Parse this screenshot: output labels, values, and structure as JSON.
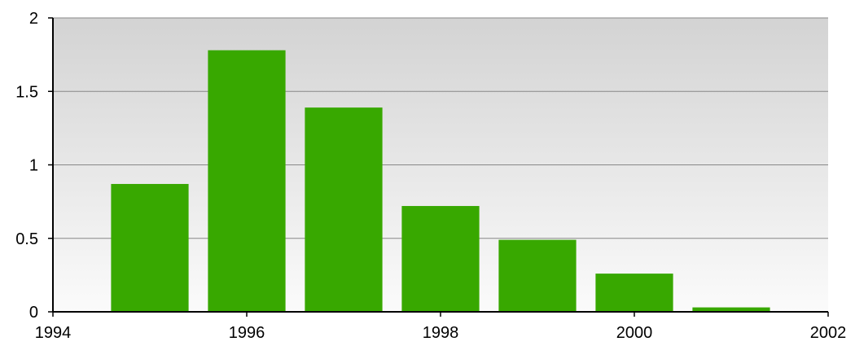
{
  "chart_data": {
    "type": "bar",
    "x": [
      1995,
      1996,
      1997,
      1998,
      1999,
      2000,
      2001
    ],
    "values": [
      0.87,
      1.78,
      1.39,
      0.72,
      0.49,
      0.26,
      0.03
    ],
    "color": "#38a800",
    "xlim": [
      1994,
      2002
    ],
    "xticks": [
      1994,
      1996,
      1998,
      2000,
      2002
    ],
    "ylim": [
      0,
      2
    ],
    "yticks": [
      0,
      0.5,
      1,
      1.5,
      2
    ],
    "grid": true
  }
}
